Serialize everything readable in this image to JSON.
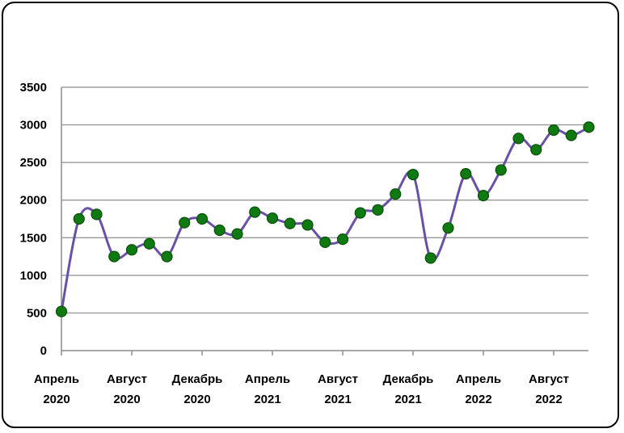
{
  "colors": {
    "line": "#6a51a8",
    "marker_fill": "#0f7a12",
    "marker_stroke": "#0a4f0a",
    "grid": "#8c8c8c",
    "axis": "#8c8c8c",
    "frame": "#000000",
    "background": "#ffffff"
  },
  "chart_data": {
    "type": "line",
    "title": "",
    "xlabel": "",
    "ylabel": "",
    "ylim": [
      0,
      3500
    ],
    "yticks": [
      0,
      500,
      1000,
      1500,
      2000,
      2500,
      3000,
      3500
    ],
    "grid": true,
    "legend": "none",
    "smooth": true,
    "x_tick_labels": [
      {
        "line1": "Апрель",
        "line2": "2020"
      },
      {
        "line1": "Август",
        "line2": "2020"
      },
      {
        "line1": "Декабрь",
        "line2": "2020"
      },
      {
        "line1": "Апрель",
        "line2": "2021"
      },
      {
        "line1": "Август",
        "line2": "2021"
      },
      {
        "line1": "Декабрь",
        "line2": "2021"
      },
      {
        "line1": "Апрель",
        "line2": "2022"
      },
      {
        "line1": "Август",
        "line2": "2022"
      }
    ],
    "x": [
      "2020-04",
      "2020-05",
      "2020-06",
      "2020-07",
      "2020-08",
      "2020-09",
      "2020-10",
      "2020-11",
      "2020-12",
      "2021-01",
      "2021-02",
      "2021-03",
      "2021-04",
      "2021-05",
      "2021-06",
      "2021-07",
      "2021-08",
      "2021-09",
      "2021-10",
      "2021-11",
      "2021-12",
      "2022-01",
      "2022-02",
      "2022-03",
      "2022-04",
      "2022-05",
      "2022-06",
      "2022-07",
      "2022-08",
      "2022-09",
      "2022-10"
    ],
    "values": [
      520,
      1750,
      1810,
      1250,
      1340,
      1420,
      1250,
      1700,
      1750,
      1600,
      1550,
      1840,
      1760,
      1690,
      1670,
      1440,
      1480,
      1830,
      1870,
      2080,
      2340,
      1230,
      1630,
      2350,
      2060,
      2400,
      2820,
      2670,
      2930,
      2860,
      2970
    ]
  }
}
